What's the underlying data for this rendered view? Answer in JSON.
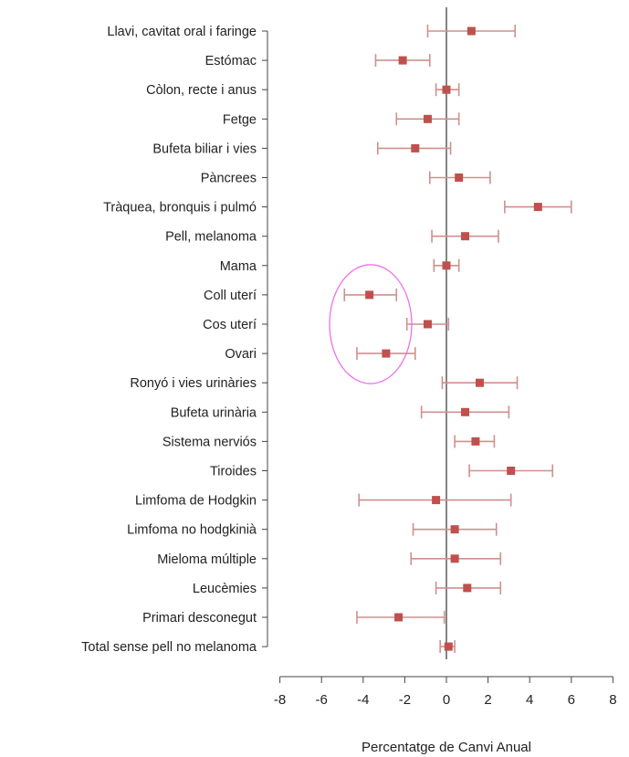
{
  "chart_data": {
    "type": "forest",
    "xlabel": "Percentatge de Canvi Anual",
    "xlim": [
      -8,
      8
    ],
    "xticks": [
      -8,
      -6,
      -4,
      -2,
      0,
      2,
      4,
      6,
      8
    ],
    "reference_line": 0,
    "grid": false,
    "colors": {
      "marker": "#c0504d",
      "whisker": "#d08f8d",
      "axis": "#444444",
      "highlight": "#ee66ee"
    },
    "categories": [
      "Llavi, cavitat oral i faringe",
      "Estómac",
      "Còlon, recte i anus",
      "Fetge",
      "Bufeta biliar i vies",
      "Pàncrees",
      "Tràquea, bronquis i pulmó",
      "Pell, melanoma",
      "Mama",
      "Coll uterí",
      "Cos uterí",
      "Ovari",
      "Ronyó i vies urinàries",
      "Bufeta urinària",
      "Sistema nerviós",
      "Tiroides",
      "Limfoma de Hodgkin",
      "Limfoma no hodgkinià",
      "Mieloma múltiple",
      "Leucèmies",
      "Primari desconegut",
      "Total sense pell no melanoma"
    ],
    "estimates": [
      1.2,
      -2.1,
      0.0,
      -0.9,
      -1.5,
      0.6,
      4.4,
      0.9,
      0.0,
      -3.7,
      -0.9,
      -2.9,
      1.6,
      0.9,
      1.4,
      3.1,
      -0.5,
      0.4,
      0.4,
      1.0,
      -2.3,
      0.1
    ],
    "lower": [
      -0.9,
      -3.4,
      -0.5,
      -2.4,
      -3.3,
      -0.8,
      2.8,
      -0.7,
      -0.6,
      -4.9,
      -1.9,
      -4.3,
      -0.2,
      -1.2,
      0.4,
      1.1,
      -4.2,
      -1.6,
      -1.7,
      -0.5,
      -4.3,
      -0.3
    ],
    "upper": [
      3.3,
      -0.8,
      0.6,
      0.6,
      0.2,
      2.1,
      6.0,
      2.5,
      0.6,
      -2.4,
      0.1,
      -1.5,
      3.4,
      3.0,
      2.3,
      5.1,
      3.1,
      2.4,
      2.6,
      2.6,
      -0.1,
      0.4
    ],
    "annotation": {
      "type": "ellipse",
      "rows": [
        "Coll uterí",
        "Cos uterí",
        "Ovari"
      ]
    }
  }
}
